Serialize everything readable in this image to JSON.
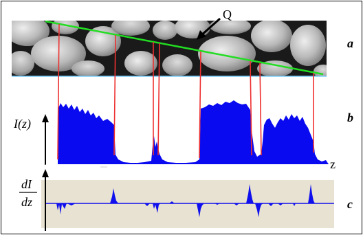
{
  "figure": {
    "point_label": "Q",
    "panel_labels": [
      "a",
      "b",
      "c"
    ],
    "intensity_axis_label": "I(z)",
    "z_axis_label": "z",
    "derivative_top": "dI",
    "derivative_bottom": "dz"
  },
  "colors": {
    "scan_line": "#22dd22",
    "marker_lines": "#ee3030",
    "profile_fill": "#0a0af0",
    "derivative_fill": "#1010ee",
    "derivative_background": "#e8e2d2",
    "image_background": "#1a1a1a"
  },
  "icons": {
    "arrow": "arrow-pointing-to-q"
  }
}
